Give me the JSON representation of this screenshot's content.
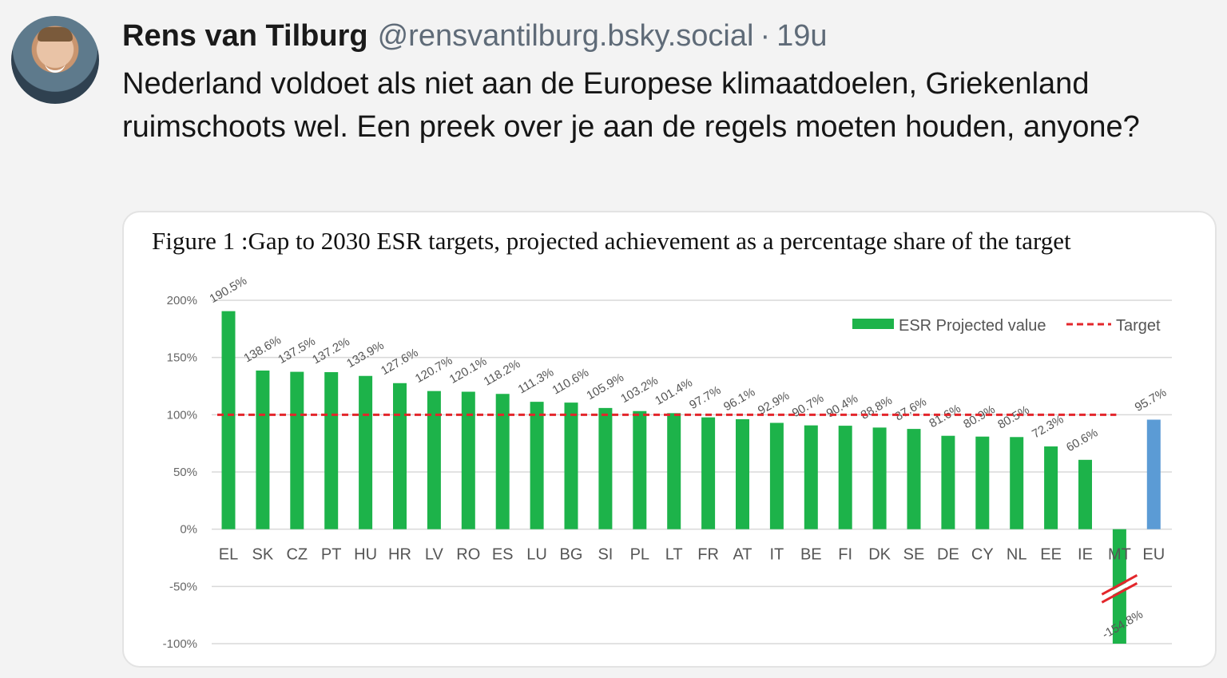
{
  "post": {
    "author_name": "Rens van Tilburg",
    "handle": "@rensvantilburg.bsky.social",
    "separator": "·",
    "time": "19u",
    "text": "Nederland voldoet als niet aan de Europese klimaatdoelen, Griekenland ruimschoots wel. Een preek over je aan de regels moeten houden, anyone?"
  },
  "chart_data": {
    "type": "bar",
    "title": "Figure 1 :Gap to 2030 ESR targets, projected achievement as a percentage share of the target",
    "categories": [
      "EL",
      "SK",
      "CZ",
      "PT",
      "HU",
      "HR",
      "LV",
      "RO",
      "ES",
      "LU",
      "BG",
      "SI",
      "PL",
      "LT",
      "FR",
      "AT",
      "IT",
      "BE",
      "FI",
      "DK",
      "SE",
      "DE",
      "CY",
      "NL",
      "EE",
      "IE",
      "MT",
      "EU"
    ],
    "values": [
      190.5,
      138.6,
      137.5,
      137.2,
      133.9,
      127.6,
      120.7,
      120.1,
      118.2,
      111.3,
      110.6,
      105.9,
      103.2,
      101.4,
      97.7,
      96.1,
      92.9,
      90.7,
      90.4,
      88.8,
      87.6,
      81.6,
      80.9,
      80.5,
      72.3,
      60.6,
      -154.8,
      95.7
    ],
    "value_labels": [
      "190.5%",
      "138.6%",
      "137.5%",
      "137.2%",
      "133.9%",
      "127.6%",
      "120.7%",
      "120.1%",
      "118.2%",
      "111.3%",
      "110.6%",
      "105.9%",
      "103.2%",
      "101.4%",
      "97.7%",
      "96.1%",
      "92.9%",
      "90.7%",
      "90.4%",
      "88.8%",
      "87.6%",
      "81.6%",
      "80.9%",
      "80.5%",
      "72.3%",
      "60.6%",
      "-154.8%",
      "95.7%"
    ],
    "ylim": [
      -100,
      200
    ],
    "yticks": [
      200,
      150,
      100,
      50,
      0,
      -50,
      -100
    ],
    "ytick_labels": [
      "200%",
      "150%",
      "100%",
      "50%",
      "0%",
      "-50%",
      "-100%"
    ],
    "target": 100,
    "axis_break_category": "MT",
    "grid": true,
    "legend": {
      "position": "top-right",
      "series_label": "ESR Projected value",
      "target_label": "Target"
    },
    "colors": {
      "bar": "#1db34a",
      "eu_bar": "#5b9bd5",
      "target": "#e3262b",
      "grid": "#d9d9d9"
    }
  }
}
